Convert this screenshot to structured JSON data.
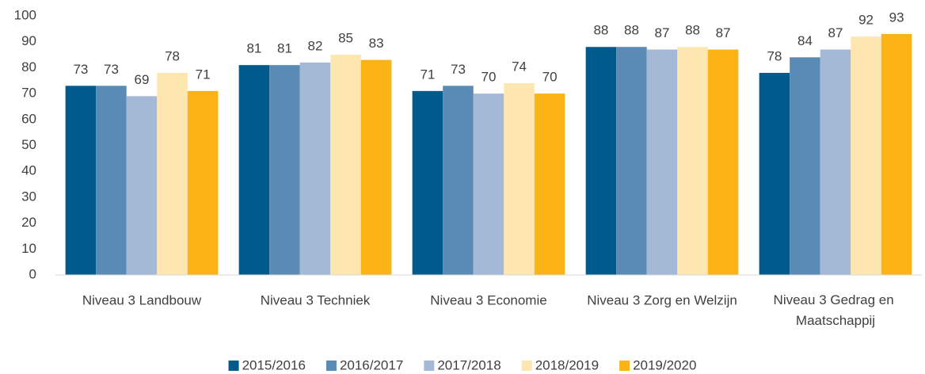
{
  "chart_data": {
    "type": "bar",
    "categories": [
      "Niveau 3 Landbouw",
      "Niveau 3 Techniek",
      "Niveau 3 Economie",
      "Niveau 3 Zorg en Welzijn",
      "Niveau 3 Gedrag en Maatschappij"
    ],
    "series": [
      {
        "name": "2015/2016",
        "color": "#005a8c",
        "values": [
          73,
          81,
          71,
          88,
          78
        ]
      },
      {
        "name": "2016/2017",
        "color": "#5a8ab6",
        "values": [
          73,
          81,
          73,
          88,
          84
        ]
      },
      {
        "name": "2017/2018",
        "color": "#a4b9d6",
        "values": [
          69,
          82,
          70,
          87,
          87
        ]
      },
      {
        "name": "2018/2019",
        "color": "#fde6b0",
        "values": [
          78,
          85,
          74,
          88,
          92
        ]
      },
      {
        "name": "2019/2020",
        "color": "#fbb316",
        "values": [
          71,
          83,
          70,
          87,
          93
        ]
      }
    ],
    "ylim": [
      0,
      100
    ],
    "yticks": [
      0,
      10,
      20,
      30,
      40,
      50,
      60,
      70,
      80,
      90,
      100
    ],
    "grid": false,
    "legend": "bottom",
    "data_labels": true
  }
}
